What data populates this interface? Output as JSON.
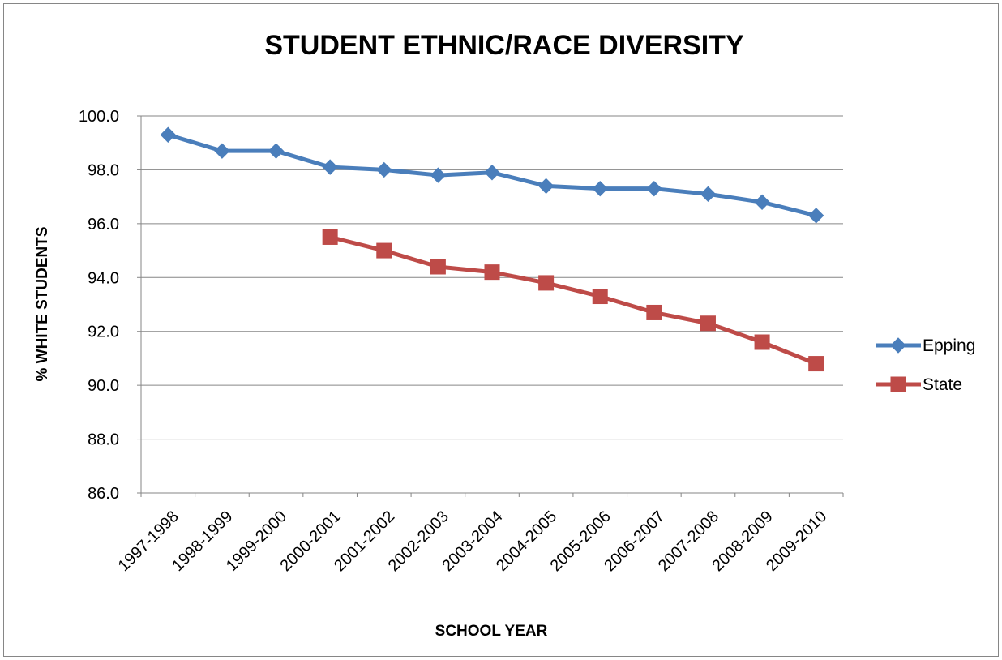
{
  "chart_data": {
    "type": "line",
    "title": "STUDENT ETHNIC/RACE DIVERSITY",
    "xlabel": "SCHOOL YEAR",
    "ylabel": "% WHITE STUDENTS",
    "ylim": [
      86.0,
      100.0
    ],
    "y_ticks": [
      "86.0",
      "88.0",
      "90.0",
      "92.0",
      "94.0",
      "96.0",
      "98.0",
      "100.0"
    ],
    "y_tick_values": [
      86,
      88,
      90,
      92,
      94,
      96,
      98,
      100
    ],
    "grid": true,
    "legend_position": "right",
    "categories": [
      "1997-1998",
      "1998-1999",
      "1999-2000",
      "2000-2001",
      "2001-2002",
      "2002-2003",
      "2003-2004",
      "2004-2005",
      "2005-2006",
      "2006-2007",
      "2007-2008",
      "2008-2009",
      "2009-2010"
    ],
    "series": [
      {
        "name": "Epping",
        "color": "#4a7ebb",
        "marker": "diamond",
        "values": [
          99.3,
          98.7,
          98.7,
          98.1,
          98.0,
          97.8,
          97.9,
          97.4,
          97.3,
          97.3,
          97.1,
          96.8,
          96.3
        ]
      },
      {
        "name": "State",
        "color": "#be4b48",
        "marker": "square",
        "values": [
          null,
          null,
          null,
          95.5,
          95.0,
          94.4,
          94.2,
          93.8,
          93.3,
          92.7,
          92.3,
          91.6,
          90.8
        ]
      }
    ]
  }
}
